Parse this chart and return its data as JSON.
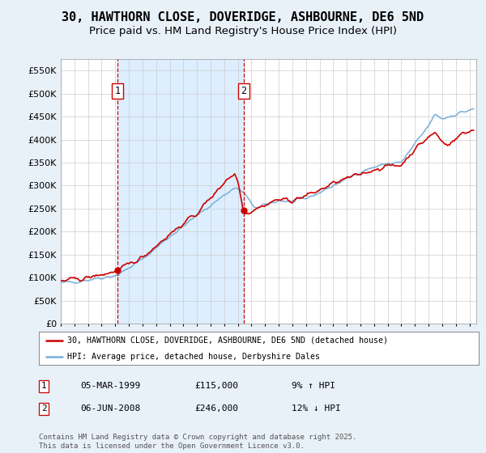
{
  "title": "30, HAWTHORN CLOSE, DOVERIDGE, ASHBOURNE, DE6 5ND",
  "subtitle": "Price paid vs. HM Land Registry's House Price Index (HPI)",
  "ylim": [
    0,
    575000
  ],
  "yticks": [
    0,
    50000,
    100000,
    150000,
    200000,
    250000,
    300000,
    350000,
    400000,
    450000,
    500000,
    550000
  ],
  "ytick_labels": [
    "£0",
    "£50K",
    "£100K",
    "£150K",
    "£200K",
    "£250K",
    "£300K",
    "£350K",
    "£400K",
    "£450K",
    "£500K",
    "£550K"
  ],
  "vline1_year": 1999.17,
  "vline2_year": 2008.42,
  "vline_color": "#cc0000",
  "red_line_color": "#cc0000",
  "blue_line_color": "#7aaed6",
  "shade_color": "#ddeeff",
  "dot_color": "#cc0000",
  "legend_label_red": "30, HAWTHORN CLOSE, DOVERIDGE, ASHBOURNE, DE6 5ND (detached house)",
  "legend_label_blue": "HPI: Average price, detached house, Derbyshire Dales",
  "annotation1_date": "05-MAR-1999",
  "annotation1_price": "£115,000",
  "annotation1_hpi": "9% ↑ HPI",
  "annotation2_date": "06-JUN-2008",
  "annotation2_price": "£246,000",
  "annotation2_hpi": "12% ↓ HPI",
  "footer_text": "Contains HM Land Registry data © Crown copyright and database right 2025.\nThis data is licensed under the Open Government Licence v3.0.",
  "background_color": "#e8f0f8",
  "plot_bg_color": "#ffffff",
  "title_fontsize": 11,
  "subtitle_fontsize": 9.5
}
